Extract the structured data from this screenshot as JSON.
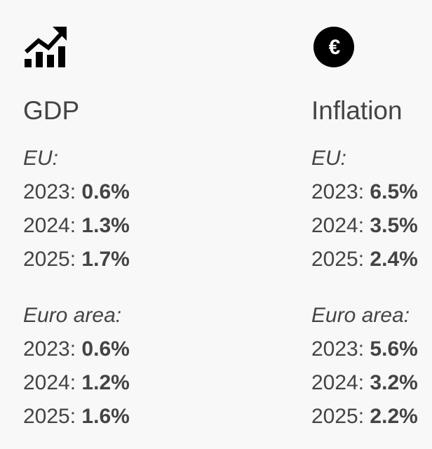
{
  "gdp": {
    "icon": "chart-trend-up-icon",
    "title": "GDP",
    "groups": [
      {
        "region": "EU:",
        "rows": [
          {
            "year": "2023:",
            "value": "0.6%"
          },
          {
            "year": "2024:",
            "value": "1.3%"
          },
          {
            "year": "2025:",
            "value": "1.7%"
          }
        ]
      },
      {
        "region": "Euro area:",
        "rows": [
          {
            "year": "2023:",
            "value": "0.6%"
          },
          {
            "year": "2024:",
            "value": "1.2%"
          },
          {
            "year": "2025:",
            "value": "1.6%"
          }
        ]
      }
    ]
  },
  "inflation": {
    "icon": "euro-icon",
    "title": "Inflation",
    "groups": [
      {
        "region": "EU:",
        "rows": [
          {
            "year": "2023:",
            "value": "6.5%"
          },
          {
            "year": "2024:",
            "value": "3.5%"
          },
          {
            "year": "2025:",
            "value": "2.4%"
          }
        ]
      },
      {
        "region": "Euro area:",
        "rows": [
          {
            "year": "2023:",
            "value": "5.6%"
          },
          {
            "year": "2024:",
            "value": "3.2%"
          },
          {
            "year": "2025:",
            "value": "2.2%"
          }
        ]
      }
    ]
  },
  "colors": {
    "background": "#f8f8f8",
    "text": "#444444",
    "icon": "#000000"
  }
}
